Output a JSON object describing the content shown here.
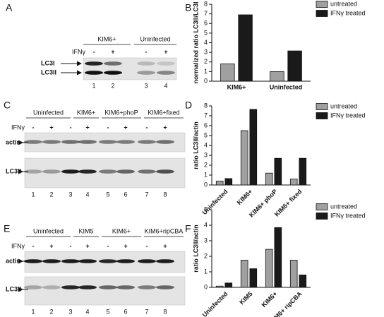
{
  "blots": [
    {
      "panel": "A",
      "headers": [
        "KIM6+",
        "Uninfected"
      ],
      "ifn": "IFNγ",
      "signs": [
        "-",
        "+",
        "-",
        "+"
      ],
      "rows": [
        "LC3I",
        "LC3II"
      ],
      "lanes": [
        "1",
        "2",
        "3",
        "4"
      ]
    },
    {
      "panel": "C",
      "headers": [
        "Uninfected",
        "KIM6+",
        "KIM6+phoP",
        "KIM6+fixed"
      ],
      "ifn": "IFNγ",
      "signs": [
        "-",
        "+",
        "-",
        "+",
        "-",
        "+",
        "-",
        "+"
      ],
      "rows": [
        "actin",
        "LC3II"
      ],
      "lanes": [
        "1",
        "2",
        "3",
        "4",
        "5",
        "6",
        "7",
        "8"
      ]
    },
    {
      "panel": "E",
      "headers": [
        "Uninfected",
        "KIM5",
        "KIM6+",
        "KIM6+ripCBA"
      ],
      "ifn": "IFNγ",
      "signs": [
        "-",
        "+",
        "-",
        "+",
        "-",
        "+",
        "-",
        "+"
      ],
      "rows": [
        "actin",
        "LC3II"
      ],
      "lanes": [
        "1",
        "2",
        "3",
        "4",
        "5",
        "6",
        "7",
        "8"
      ]
    }
  ],
  "chart_data": [
    {
      "type": "bar",
      "panel": "B",
      "y_label": "normalized ratio LC3II/LC3I",
      "categories": [
        "KIM6+",
        "Uninfected"
      ],
      "series": [
        {
          "name": "untreated",
          "color": "#a0a0a0",
          "values": [
            1.8,
            1.0
          ]
        },
        {
          "name": "IFNγ treated",
          "color": "#1a1a1a",
          "values": [
            6.9,
            3.15
          ]
        }
      ],
      "ylim": [
        0,
        8
      ],
      "yticks": [
        0,
        1,
        2,
        3,
        4,
        5,
        6,
        7,
        8
      ]
    },
    {
      "type": "bar",
      "panel": "D",
      "y_label": "ratio LC3II/actin",
      "categories": [
        "Uninfected",
        "KIM6+",
        "KIM6+ phoP",
        "KIM6+ fixed"
      ],
      "series": [
        {
          "name": "untreated",
          "color": "#a0a0a0",
          "values": [
            0.4,
            5.5,
            1.2,
            0.6
          ]
        },
        {
          "name": "IFNγ treated",
          "color": "#1a1a1a",
          "values": [
            0.65,
            7.65,
            2.7,
            2.7
          ]
        }
      ],
      "ylim": [
        0,
        8
      ],
      "yticks": [
        0,
        1,
        2,
        3,
        4,
        5,
        6,
        7,
        8
      ]
    },
    {
      "type": "bar",
      "panel": "F",
      "y_label": "ratio LC3II/actin",
      "categories": [
        "Uninfected",
        "KIM5",
        "KIM6+",
        "KIM6+ ripCBA"
      ],
      "series": [
        {
          "name": "untreated",
          "color": "#a0a0a0",
          "values": [
            0.08,
            1.75,
            2.45,
            1.75
          ]
        },
        {
          "name": "IFNγ treated",
          "color": "#1a1a1a",
          "values": [
            0.28,
            1.2,
            3.85,
            0.8
          ]
        }
      ],
      "ylim": [
        0,
        5
      ],
      "yticks": [
        0,
        1,
        2,
        3,
        4,
        5
      ]
    }
  ]
}
